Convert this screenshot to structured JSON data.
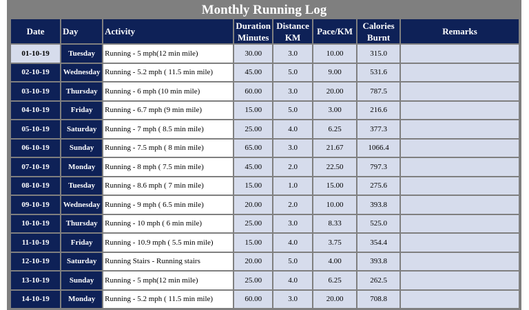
{
  "title": "Monthly Running Log",
  "colors": {
    "sheet_gray": "#7f7f7f",
    "header_navy": "#0e2157",
    "cell_blue": "#d6dcec",
    "text_white": "#ffffff"
  },
  "headers": {
    "date": "Date",
    "day": "Day",
    "activity": "Activity",
    "duration_line1": "Duration",
    "duration_line2": "Minutes",
    "distance_line1": "Distance",
    "distance_line2": "KM",
    "pace": "Pace/KM",
    "calories_line1": "Calories",
    "calories_line2": "Burnt",
    "remarks": "Remarks"
  },
  "rows": [
    {
      "date": "01-10-19",
      "day": "Tuesday",
      "activity": "Running - 5 mph(12 min mile)",
      "duration": "30.00",
      "distance": "3.0",
      "pace": "10.00",
      "calories": "315.0",
      "remarks": ""
    },
    {
      "date": "02-10-19",
      "day": "Wednesday",
      "activity": "Running - 5.2 mph ( 11.5 min mile)",
      "duration": "45.00",
      "distance": "5.0",
      "pace": "9.00",
      "calories": "531.6",
      "remarks": ""
    },
    {
      "date": "03-10-19",
      "day": "Thursday",
      "activity": "Running - 6 mph (10 min mile)",
      "duration": "60.00",
      "distance": "3.0",
      "pace": "20.00",
      "calories": "787.5",
      "remarks": ""
    },
    {
      "date": "04-10-19",
      "day": "Friday",
      "activity": "Running - 6.7 mph (9 min mile)",
      "duration": "15.00",
      "distance": "5.0",
      "pace": "3.00",
      "calories": "216.6",
      "remarks": ""
    },
    {
      "date": "05-10-19",
      "day": "Saturday",
      "activity": "Running - 7 mph ( 8.5 min mile)",
      "duration": "25.00",
      "distance": "4.0",
      "pace": "6.25",
      "calories": "377.3",
      "remarks": ""
    },
    {
      "date": "06-10-19",
      "day": "Sunday",
      "activity": "Running - 7.5 mph ( 8 min mile)",
      "duration": "65.00",
      "distance": "3.0",
      "pace": "21.67",
      "calories": "1066.4",
      "remarks": ""
    },
    {
      "date": "07-10-19",
      "day": "Monday",
      "activity": "Running - 8 mph ( 7.5 min mile)",
      "duration": "45.00",
      "distance": "2.0",
      "pace": "22.50",
      "calories": "797.3",
      "remarks": ""
    },
    {
      "date": "08-10-19",
      "day": "Tuesday",
      "activity": "Running - 8.6 mph ( 7 min mile)",
      "duration": "15.00",
      "distance": "1.0",
      "pace": "15.00",
      "calories": "275.6",
      "remarks": ""
    },
    {
      "date": "09-10-19",
      "day": "Wednesday",
      "activity": "Running - 9 mph ( 6.5 min mile)",
      "duration": "20.00",
      "distance": "2.0",
      "pace": "10.00",
      "calories": "393.8",
      "remarks": ""
    },
    {
      "date": "10-10-19",
      "day": "Thursday",
      "activity": "Running - 10 mph ( 6 min mile)",
      "duration": "25.00",
      "distance": "3.0",
      "pace": "8.33",
      "calories": "525.0",
      "remarks": ""
    },
    {
      "date": "11-10-19",
      "day": "Friday",
      "activity": "Running - 10.9 mph ( 5.5 min mile)",
      "duration": "15.00",
      "distance": "4.0",
      "pace": "3.75",
      "calories": "354.4",
      "remarks": ""
    },
    {
      "date": "12-10-19",
      "day": "Saturday",
      "activity": "Running Stairs - Running stairs",
      "duration": "20.00",
      "distance": "5.0",
      "pace": "4.00",
      "calories": "393.8",
      "remarks": ""
    },
    {
      "date": "13-10-19",
      "day": "Sunday",
      "activity": "Running - 5 mph(12 min mile)",
      "duration": "25.00",
      "distance": "4.0",
      "pace": "6.25",
      "calories": "262.5",
      "remarks": ""
    },
    {
      "date": "14-10-19",
      "day": "Monday",
      "activity": "Running - 5.2 mph ( 11.5 min mile)",
      "duration": "60.00",
      "distance": "3.0",
      "pace": "20.00",
      "calories": "708.8",
      "remarks": ""
    }
  ]
}
